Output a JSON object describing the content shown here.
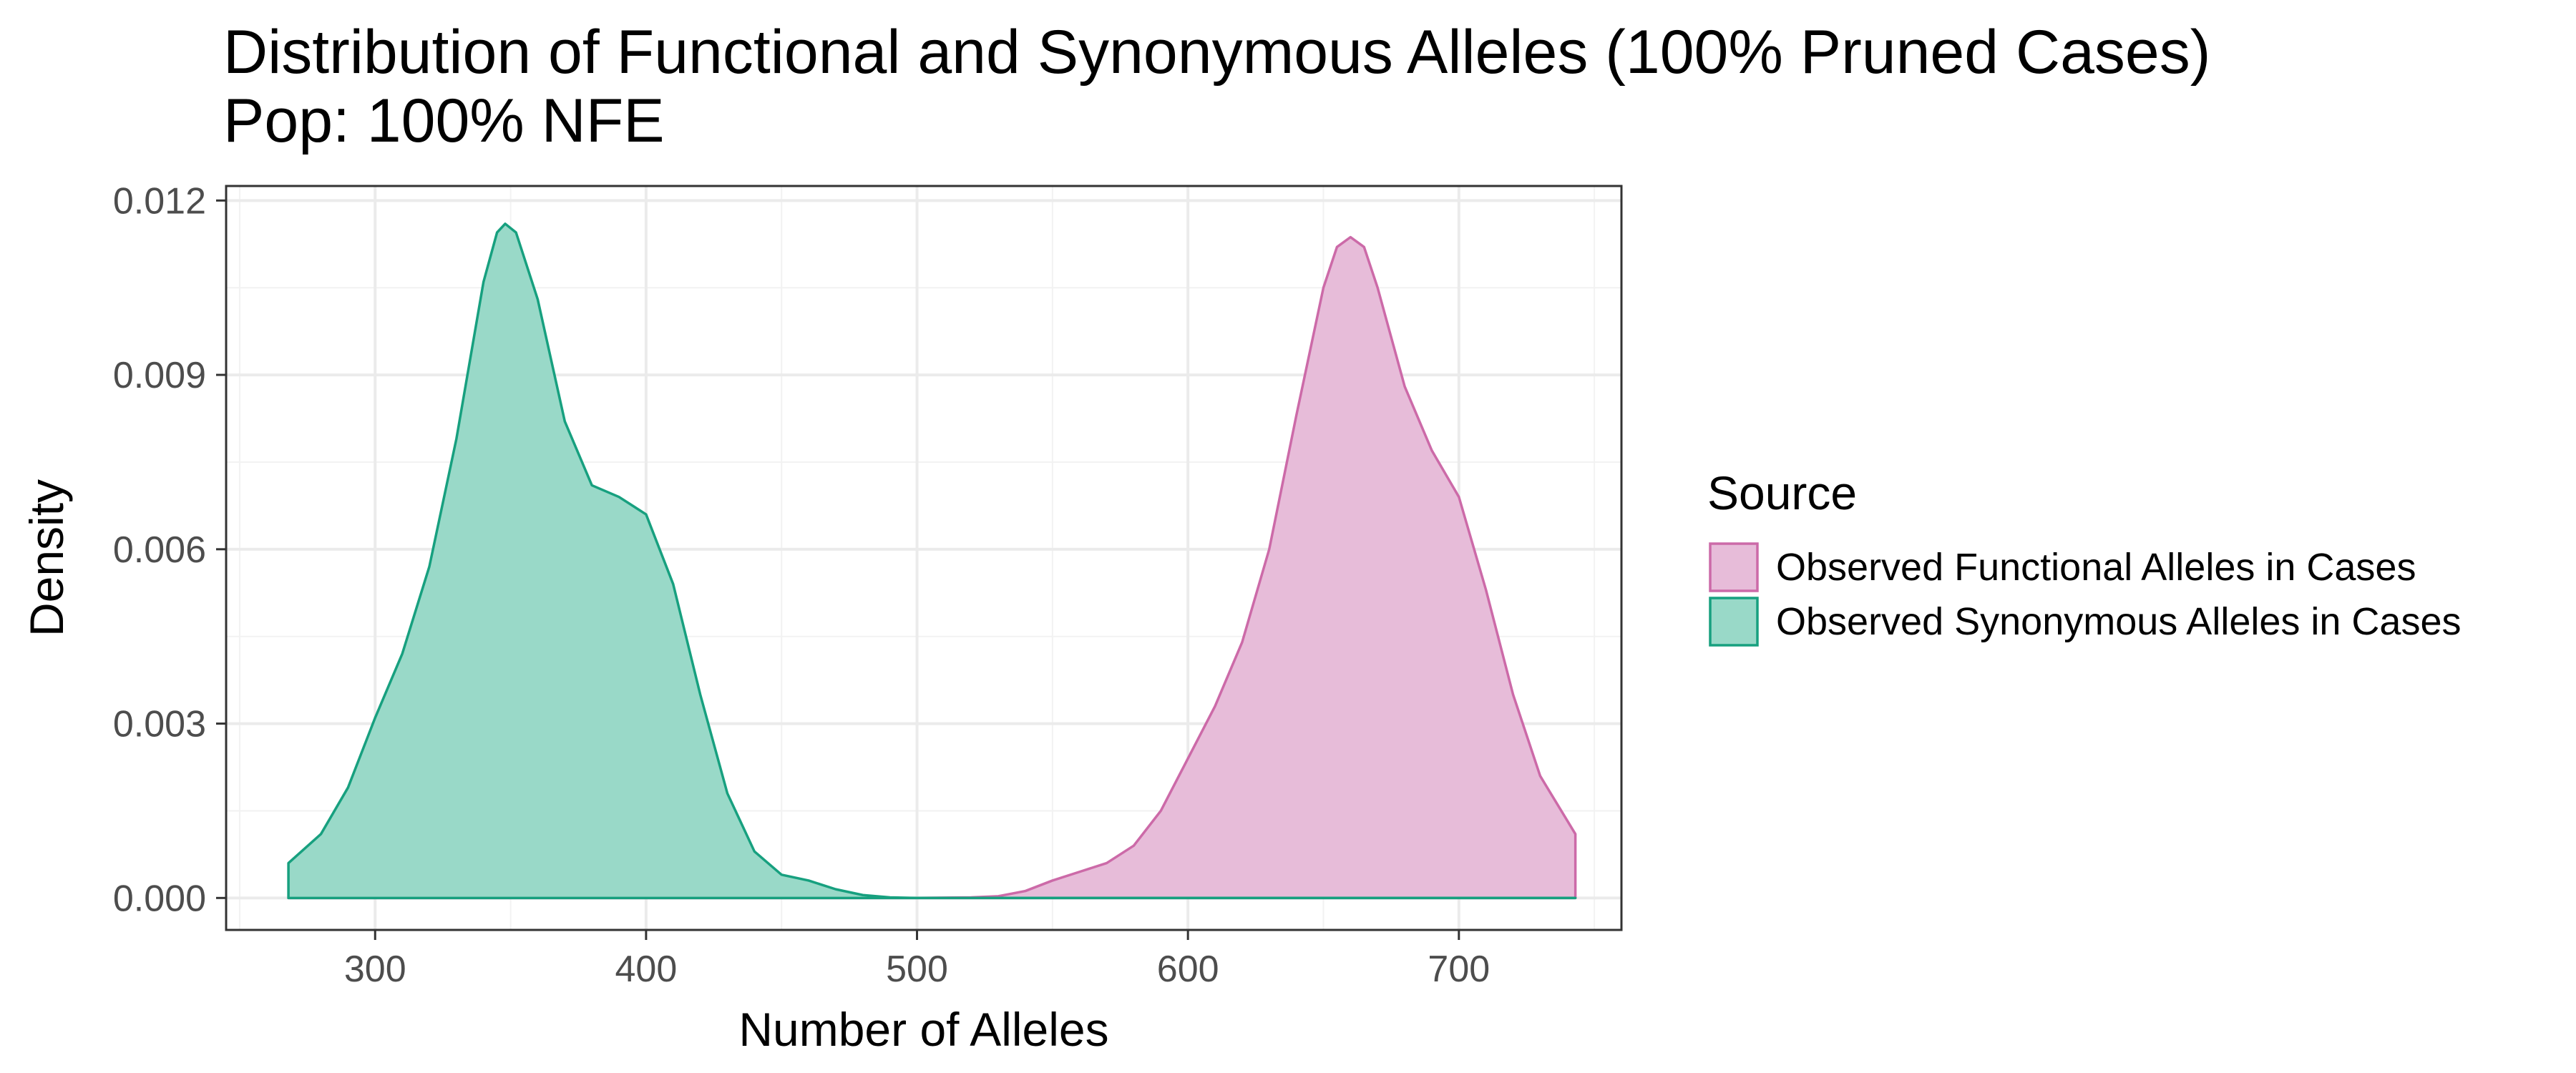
{
  "chart_data": {
    "type": "area",
    "title": "Distribution of Functional and Synonymous Alleles (100% Pruned Cases)",
    "subtitle": "Pop: 100% NFE",
    "xlabel": "Number of Alleles",
    "ylabel": "Density",
    "xlim": [
      245,
      760
    ],
    "ylim": [
      -0.00055,
      0.01225
    ],
    "x_ticks": [
      300,
      400,
      500,
      600,
      700
    ],
    "x_tick_labels": [
      "300",
      "400",
      "500",
      "600",
      "700"
    ],
    "y_ticks": [
      0,
      0.003,
      0.006,
      0.009,
      0.012
    ],
    "y_tick_labels": [
      "0.000",
      "0.003",
      "0.006",
      "0.009",
      "0.012"
    ],
    "grid": true,
    "legend": {
      "title": "Source",
      "position": "right"
    },
    "series": [
      {
        "name": "Observed Functional Alleles in Cases",
        "fill": "#e7bcd9",
        "stroke": "#cc6aa8",
        "points": [
          [
            268,
            0
          ],
          [
            400,
            0
          ],
          [
            440,
            0
          ],
          [
            480,
            0
          ],
          [
            500,
            0
          ],
          [
            520,
            1e-05
          ],
          [
            530,
            3e-05
          ],
          [
            540,
            0.00012
          ],
          [
            550,
            0.0003
          ],
          [
            560,
            0.00045
          ],
          [
            570,
            0.0006
          ],
          [
            580,
            0.0009
          ],
          [
            590,
            0.0015
          ],
          [
            600,
            0.0024
          ],
          [
            610,
            0.0033
          ],
          [
            620,
            0.0044
          ],
          [
            630,
            0.006
          ],
          [
            640,
            0.0083
          ],
          [
            650,
            0.0105
          ],
          [
            655,
            0.0112
          ],
          [
            660,
            0.01137
          ],
          [
            665,
            0.0112
          ],
          [
            670,
            0.0105
          ],
          [
            680,
            0.0088
          ],
          [
            690,
            0.0077
          ],
          [
            700,
            0.0069
          ],
          [
            710,
            0.0053
          ],
          [
            720,
            0.0035
          ],
          [
            730,
            0.0021
          ],
          [
            743,
            0.0011
          ]
        ]
      },
      {
        "name": "Observed Synonymous Alleles in Cases",
        "fill": "#99d9c8",
        "stroke": "#17a07f",
        "points": [
          [
            268,
            0.0006
          ],
          [
            280,
            0.0011
          ],
          [
            290,
            0.0019
          ],
          [
            300,
            0.0031
          ],
          [
            310,
            0.0042
          ],
          [
            320,
            0.0057
          ],
          [
            330,
            0.0079
          ],
          [
            340,
            0.0106
          ],
          [
            345,
            0.01145
          ],
          [
            348,
            0.0116
          ],
          [
            352,
            0.01145
          ],
          [
            360,
            0.0103
          ],
          [
            370,
            0.0082
          ],
          [
            380,
            0.0071
          ],
          [
            390,
            0.0069
          ],
          [
            400,
            0.0066
          ],
          [
            410,
            0.0054
          ],
          [
            420,
            0.0035
          ],
          [
            430,
            0.0018
          ],
          [
            440,
            0.0008
          ],
          [
            450,
            0.0004
          ],
          [
            460,
            0.0003
          ],
          [
            470,
            0.00015
          ],
          [
            480,
            5e-05
          ],
          [
            490,
            1e-05
          ],
          [
            500,
            0
          ],
          [
            600,
            0
          ],
          [
            700,
            0
          ],
          [
            743,
            0
          ]
        ]
      }
    ]
  }
}
